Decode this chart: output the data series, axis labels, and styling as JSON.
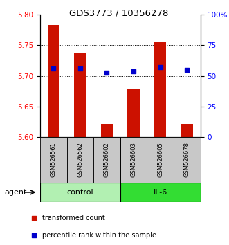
{
  "title": "GDS3773 / 10356278",
  "samples": [
    "GSM526561",
    "GSM526562",
    "GSM526602",
    "GSM526603",
    "GSM526605",
    "GSM526678"
  ],
  "red_values": [
    5.783,
    5.738,
    5.622,
    5.678,
    5.756,
    5.622
  ],
  "blue_values": [
    5.712,
    5.712,
    5.705,
    5.708,
    5.714,
    5.71
  ],
  "ylim_left": [
    5.6,
    5.8
  ],
  "yticks_left": [
    5.6,
    5.65,
    5.7,
    5.75,
    5.8
  ],
  "yticks_right": [
    0,
    25,
    50,
    75,
    100
  ],
  "groups": [
    {
      "label": "control",
      "indices": [
        0,
        1,
        2
      ],
      "color": "#b2f0b2"
    },
    {
      "label": "IL-6",
      "indices": [
        3,
        4,
        5
      ],
      "color": "#33dd33"
    }
  ],
  "bar_color": "#cc1100",
  "blue_color": "#0000cc",
  "sample_box_color": "#c8c8c8",
  "agent_label": "agent",
  "legend_items": [
    {
      "label": "transformed count",
      "color": "#cc1100"
    },
    {
      "label": "percentile rank within the sample",
      "color": "#0000cc"
    }
  ]
}
